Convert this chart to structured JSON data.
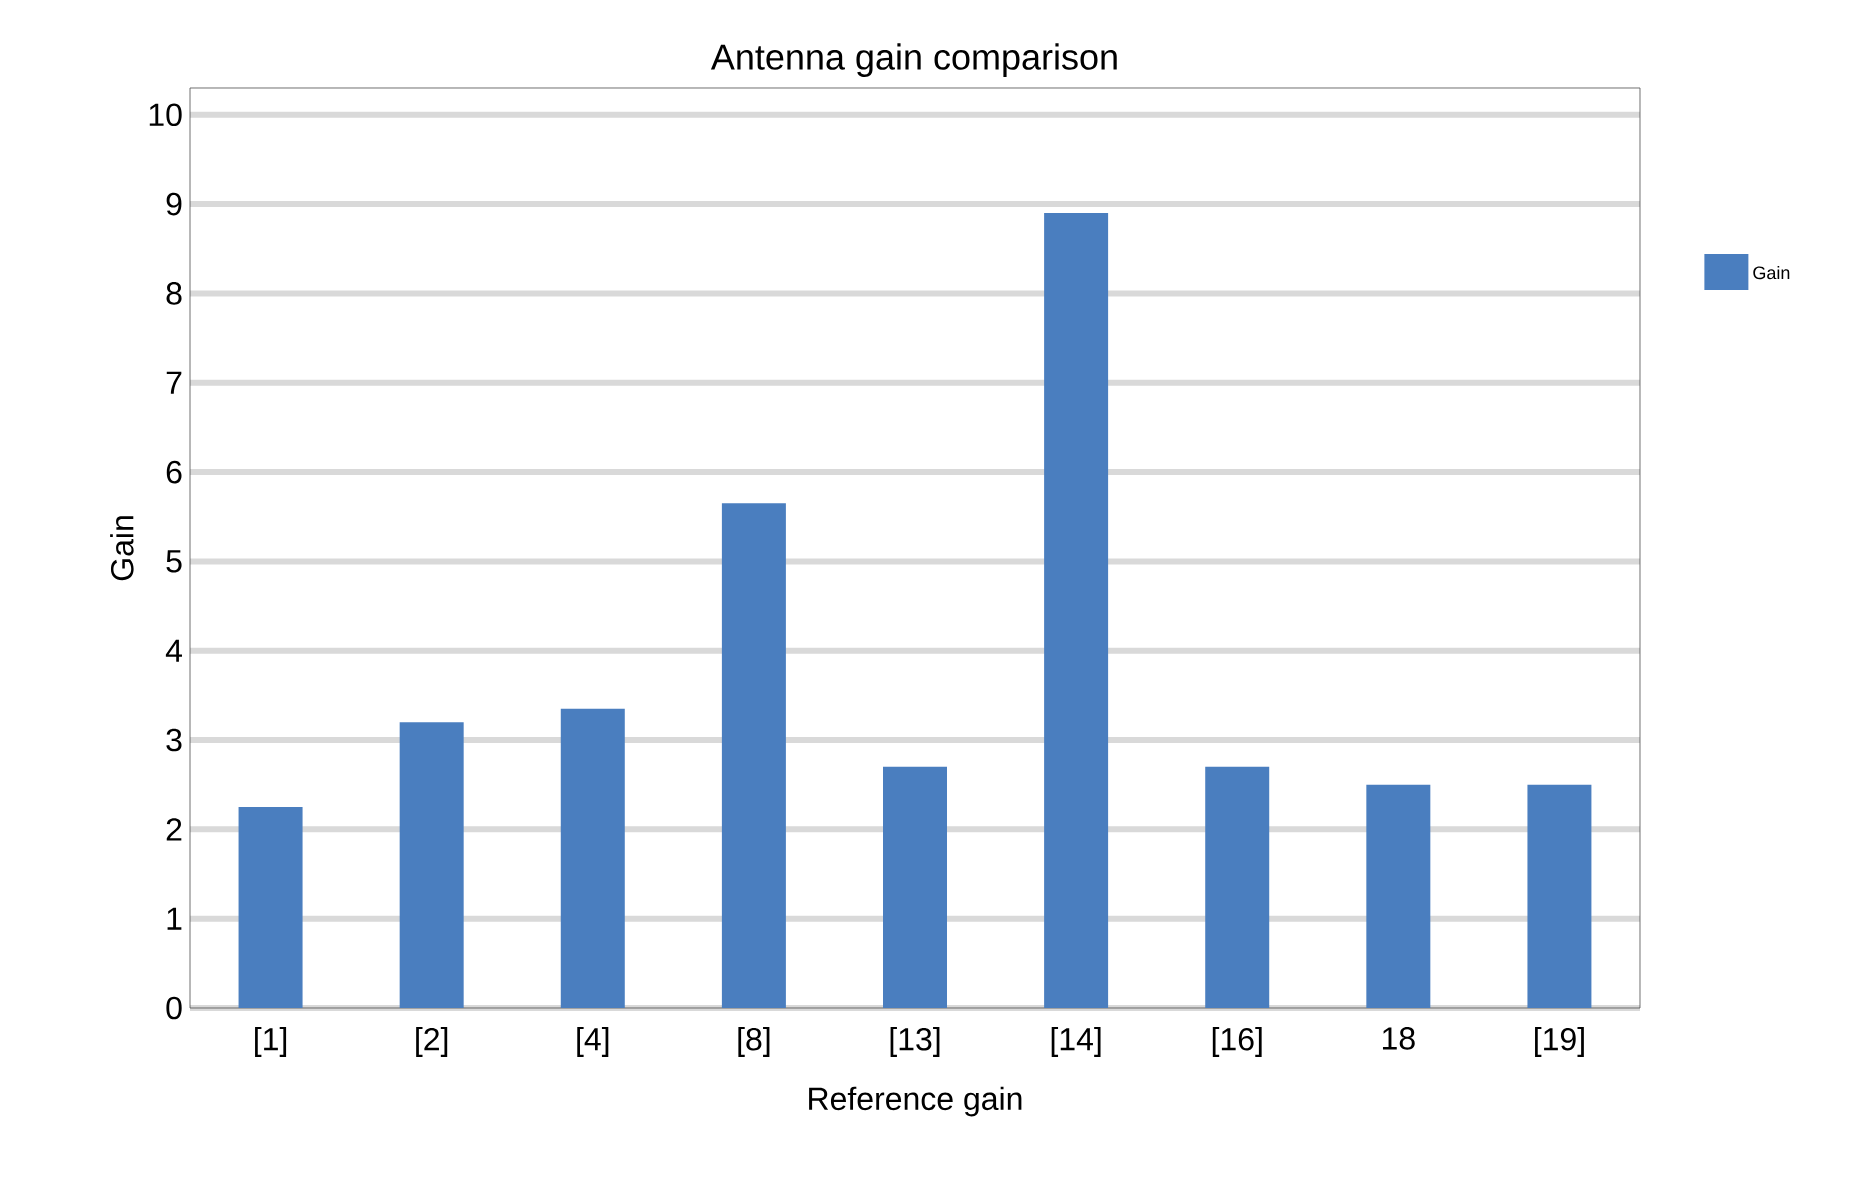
{
  "chart_data": {
    "type": "bar",
    "title": "Antenna gain comparison",
    "xlabel": "Reference gain",
    "ylabel": "Gain",
    "categories": [
      "[1]",
      "[2]",
      "[4]",
      "[8]",
      "[13]",
      "[14]",
      "[16]",
      "18",
      "[19]"
    ],
    "series": [
      {
        "name": "Gain",
        "color": "#4a7ebf",
        "values": [
          2.25,
          3.2,
          3.35,
          5.65,
          2.7,
          8.9,
          2.7,
          2.5,
          2.5
        ]
      }
    ],
    "ylim": [
      0,
      10
    ],
    "yticks": [
      0,
      1,
      2,
      3,
      4,
      5,
      6,
      7,
      8,
      9,
      10
    ],
    "grid": "y",
    "legend": "right"
  }
}
